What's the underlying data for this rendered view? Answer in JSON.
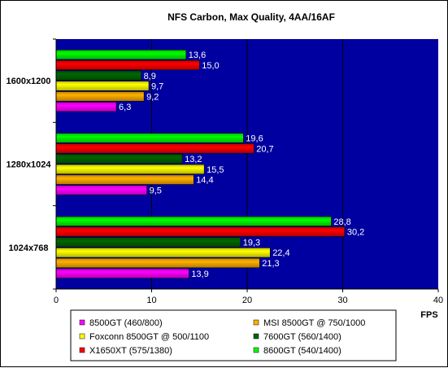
{
  "chart_data": {
    "type": "bar",
    "orientation": "horizontal",
    "title": "NFS Carbon, Max Quality, 4AA/16AF",
    "xlabel": "FPS",
    "ylabel": "",
    "xlim": [
      0,
      40
    ],
    "x_ticks": [
      0,
      10,
      20,
      30,
      40
    ],
    "grid": true,
    "legend_position": "bottom",
    "plot_background": "#0000a0",
    "categories": [
      "1600x1200",
      "1280x1024",
      "1024x768"
    ],
    "series": [
      {
        "name": "8500GT (460/800)",
        "color": "#ff00ff",
        "values": [
          6.3,
          9.5,
          13.9
        ],
        "labels": [
          "6,3",
          "9,5",
          "13,9"
        ]
      },
      {
        "name": "MSI 8500GT @ 750/1000",
        "color": "#ffb000",
        "values": [
          9.2,
          14.4,
          21.3
        ],
        "labels": [
          "9,2",
          "14,4",
          "21,3"
        ]
      },
      {
        "name": "Foxconn 8500GT @ 500/1100",
        "color": "#ffff00",
        "values": [
          9.7,
          15.5,
          22.4
        ],
        "labels": [
          "9,7",
          "15,5",
          "22,4"
        ]
      },
      {
        "name": "7600GT (560/1400)",
        "color": "#006600",
        "values": [
          8.9,
          13.2,
          19.3
        ],
        "labels": [
          "8,9",
          "13,2",
          "19,3"
        ]
      },
      {
        "name": "X1650XT (575/1380)",
        "color": "#ff0000",
        "values": [
          15.0,
          20.7,
          30.2
        ],
        "labels": [
          "15,0",
          "20,7",
          "30,2"
        ]
      },
      {
        "name": "8600GT (540/1400)",
        "color": "#00ff00",
        "values": [
          13.6,
          19.6,
          28.8
        ],
        "labels": [
          "13,6",
          "19,6",
          "28,8"
        ]
      }
    ]
  }
}
